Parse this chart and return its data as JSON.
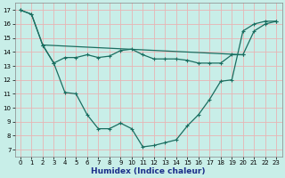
{
  "title": "",
  "xlabel": "Humidex (Indice chaleur)",
  "bg_color": "#c8eee8",
  "grid_color": "#e8b4b4",
  "line_color": "#1a6e60",
  "xlim": [
    -0.5,
    23.5
  ],
  "ylim": [
    6.5,
    17.5
  ],
  "xticks": [
    0,
    1,
    2,
    3,
    4,
    5,
    6,
    7,
    8,
    9,
    10,
    11,
    12,
    13,
    14,
    15,
    16,
    17,
    18,
    19,
    20,
    21,
    22,
    23
  ],
  "yticks": [
    7,
    8,
    9,
    10,
    11,
    12,
    13,
    14,
    15,
    16,
    17
  ],
  "line1_x": [
    0,
    1,
    2,
    3,
    4,
    5,
    6,
    7,
    8,
    9,
    10,
    11,
    12,
    13,
    14,
    15,
    16,
    17,
    18,
    19,
    20,
    21,
    22,
    23
  ],
  "line1_y": [
    17.0,
    16.7,
    14.5,
    13.2,
    11.1,
    11.0,
    9.5,
    8.5,
    8.5,
    8.9,
    8.5,
    7.2,
    7.3,
    7.5,
    7.7,
    8.7,
    9.5,
    10.6,
    11.9,
    12.0,
    15.5,
    16.0,
    16.2,
    16.2
  ],
  "line2_x": [
    2,
    3,
    4,
    5,
    6,
    7,
    8,
    9,
    10,
    11,
    12,
    13,
    14,
    15,
    16,
    17,
    18,
    19,
    20
  ],
  "line2_y": [
    14.5,
    13.2,
    13.6,
    13.6,
    13.8,
    13.6,
    13.7,
    14.1,
    14.2,
    13.8,
    13.5,
    13.5,
    13.5,
    13.4,
    13.2,
    13.2,
    13.2,
    13.8,
    13.8
  ],
  "line3_x": [
    0,
    1,
    2,
    20,
    21,
    22,
    23
  ],
  "line3_y": [
    17.0,
    16.7,
    14.5,
    13.8,
    15.5,
    16.0,
    16.2
  ],
  "marker": "+",
  "markersize": 3,
  "linewidth": 0.9,
  "tick_fontsize": 5,
  "xlabel_fontsize": 6.5,
  "xlabel_color": "#1a2e8a",
  "xlabel_fontweight": "bold"
}
